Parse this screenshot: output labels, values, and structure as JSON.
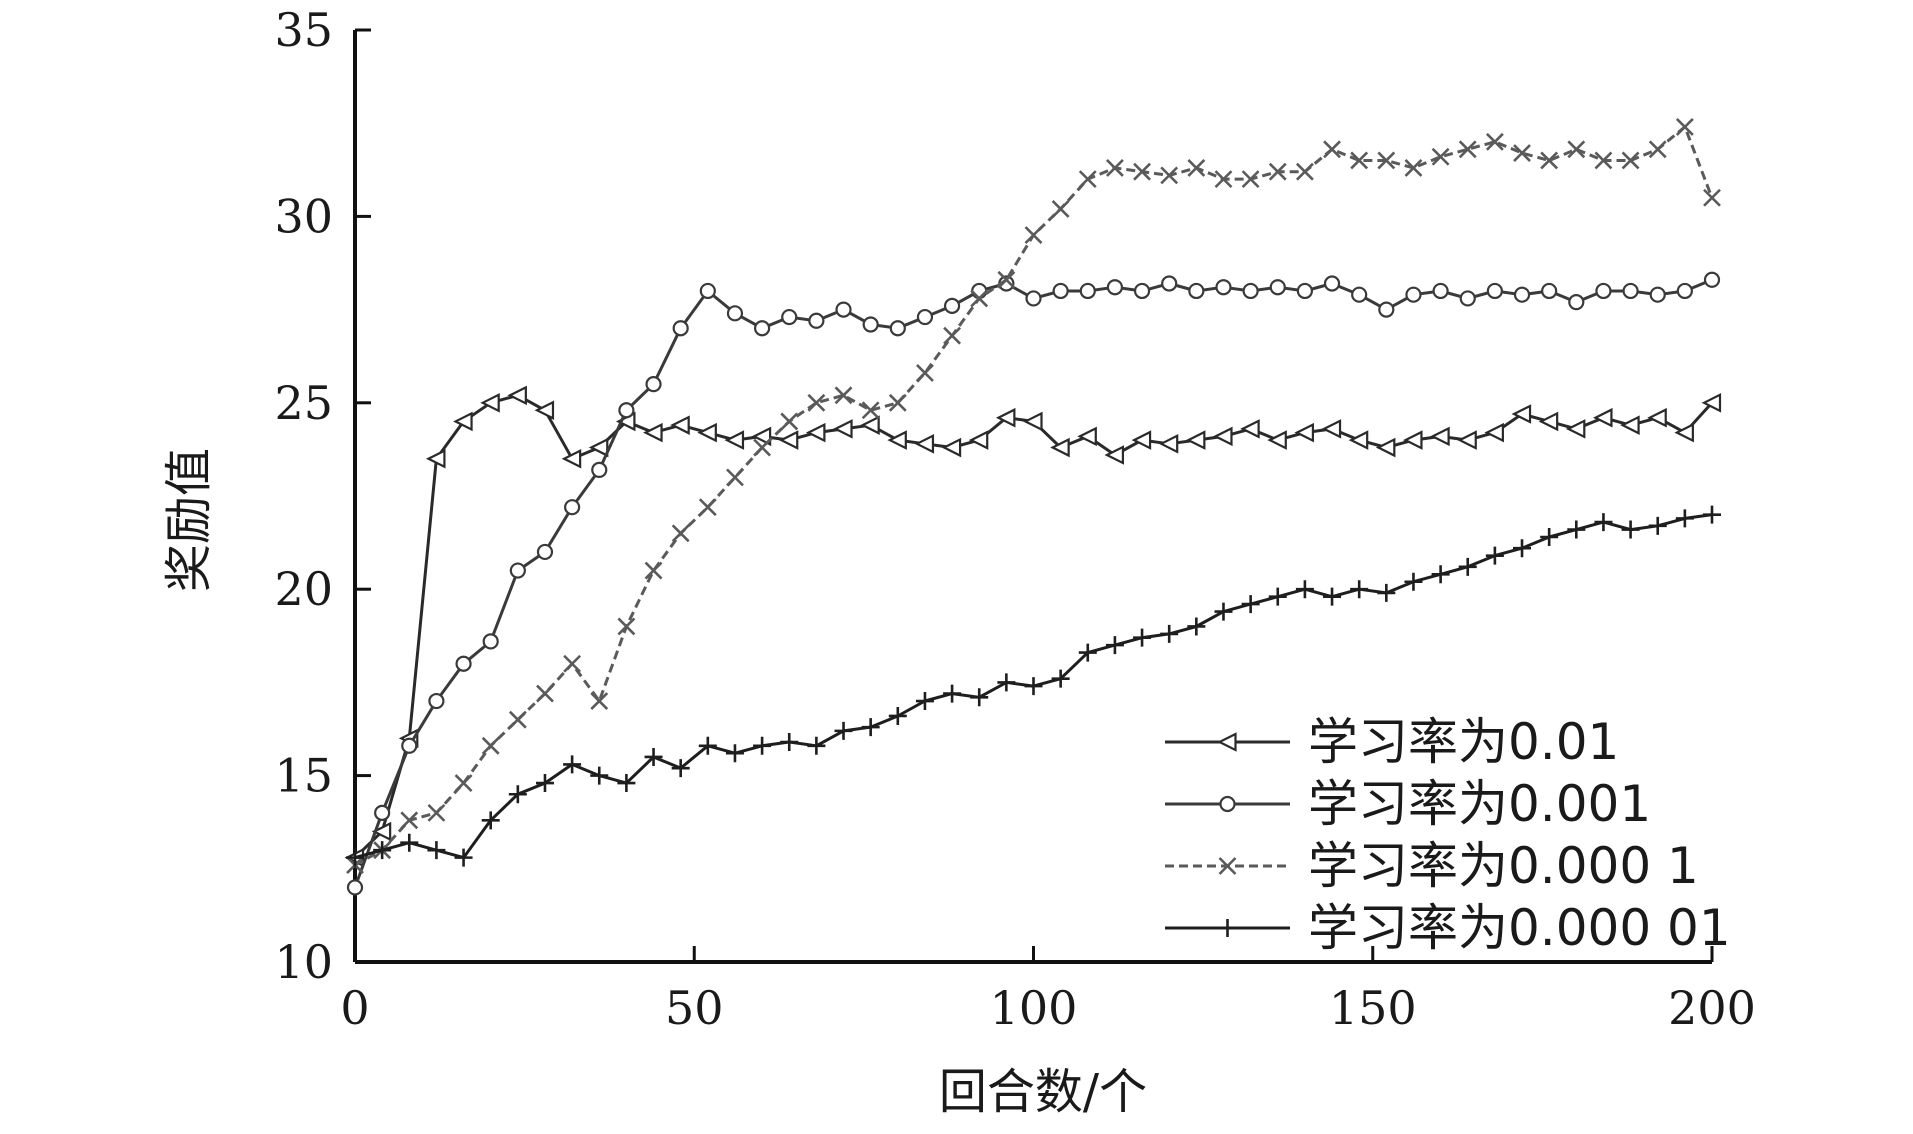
{
  "chart_data": {
    "type": "line",
    "xlabel": "回合数/个",
    "ylabel": "奖励值",
    "xlim": [
      0,
      200
    ],
    "ylim": [
      10,
      35
    ],
    "xticks": [
      "0",
      "50",
      "100",
      "150",
      "200"
    ],
    "yticks": [
      "10",
      "15",
      "20",
      "25",
      "30",
      "35"
    ],
    "grid": false,
    "legend_position": "bottom-right",
    "x": [
      0,
      4,
      8,
      12,
      16,
      20,
      24,
      28,
      32,
      36,
      40,
      44,
      48,
      52,
      56,
      60,
      64,
      68,
      72,
      76,
      80,
      84,
      88,
      92,
      96,
      100,
      104,
      108,
      112,
      116,
      120,
      124,
      128,
      132,
      136,
      140,
      144,
      148,
      152,
      156,
      160,
      164,
      168,
      172,
      176,
      180,
      184,
      188,
      192,
      196,
      200
    ],
    "series": [
      {
        "name": "学习率为0.01",
        "marker": "triangle-left",
        "color": "#2a2a2a",
        "values": [
          12.8,
          13.5,
          16.0,
          23.5,
          24.5,
          25.0,
          25.2,
          24.8,
          23.5,
          23.8,
          24.5,
          24.2,
          24.4,
          24.2,
          24.0,
          24.1,
          24.0,
          24.2,
          24.3,
          24.4,
          24.0,
          23.9,
          23.8,
          24.0,
          24.6,
          24.5,
          23.8,
          24.1,
          23.6,
          24.0,
          23.9,
          24.0,
          24.1,
          24.3,
          24.0,
          24.2,
          24.3,
          24.0,
          23.8,
          24.0,
          24.1,
          24.0,
          24.2,
          24.7,
          24.5,
          24.3,
          24.6,
          24.4,
          24.6,
          24.2,
          25.0
        ]
      },
      {
        "name": "学习率为0.001",
        "marker": "circle",
        "color": "#3a3a3a",
        "values": [
          12.0,
          14.0,
          15.8,
          17.0,
          18.0,
          18.6,
          20.5,
          21.0,
          22.2,
          23.2,
          24.8,
          25.5,
          27.0,
          28.0,
          27.4,
          27.0,
          27.3,
          27.2,
          27.5,
          27.1,
          27.0,
          27.3,
          27.6,
          28.0,
          28.2,
          27.8,
          28.0,
          28.0,
          28.1,
          28.0,
          28.2,
          28.0,
          28.1,
          28.0,
          28.1,
          28.0,
          28.2,
          27.9,
          27.5,
          27.9,
          28.0,
          27.8,
          28.0,
          27.9,
          28.0,
          27.7,
          28.0,
          28.0,
          27.9,
          28.0,
          28.3
        ]
      },
      {
        "name": "学习率为0.000 1",
        "marker": "x",
        "color": "#5a5a5a",
        "values": [
          12.6,
          13.0,
          13.8,
          14.0,
          14.8,
          15.8,
          16.5,
          17.2,
          18.0,
          17.0,
          19.0,
          20.5,
          21.5,
          22.2,
          23.0,
          23.8,
          24.5,
          25.0,
          25.2,
          24.8,
          25.0,
          25.8,
          26.8,
          27.8,
          28.3,
          29.5,
          30.2,
          31.0,
          31.3,
          31.2,
          31.1,
          31.3,
          31.0,
          31.0,
          31.2,
          31.2,
          31.8,
          31.5,
          31.5,
          31.3,
          31.6,
          31.8,
          32.0,
          31.7,
          31.5,
          31.8,
          31.5,
          31.5,
          31.8,
          32.4,
          30.5
        ]
      },
      {
        "name": "学习率为0.000 01",
        "marker": "plus",
        "color": "#1e1e1e",
        "values": [
          12.8,
          13.0,
          13.2,
          13.0,
          12.8,
          13.8,
          14.5,
          14.8,
          15.3,
          15.0,
          14.8,
          15.5,
          15.2,
          15.8,
          15.6,
          15.8,
          15.9,
          15.8,
          16.2,
          16.3,
          16.6,
          17.0,
          17.2,
          17.1,
          17.5,
          17.4,
          17.6,
          18.3,
          18.5,
          18.7,
          18.8,
          19.0,
          19.4,
          19.6,
          19.8,
          20.0,
          19.8,
          20.0,
          19.9,
          20.2,
          20.4,
          20.6,
          20.9,
          21.1,
          21.4,
          21.6,
          21.8,
          21.6,
          21.7,
          21.9,
          22.0
        ]
      }
    ]
  }
}
